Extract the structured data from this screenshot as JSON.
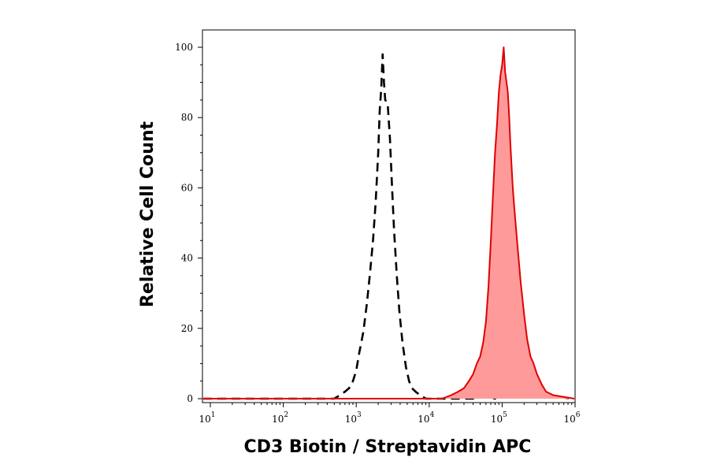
{
  "chart_data": {
    "type": "area",
    "title": "",
    "xlabel": "CD3 Biotin / Streptavidin APC",
    "ylabel": "Relative Cell Count",
    "x_scale": "log10",
    "xlim": [
      10,
      1000000
    ],
    "ylim": [
      0,
      100
    ],
    "grid": false,
    "legend": "none",
    "x_ticks": [
      {
        "base": "10",
        "exp": "1",
        "value": 10
      },
      {
        "base": "10",
        "exp": "2",
        "value": 100
      },
      {
        "base": "10",
        "exp": "3",
        "value": 1000
      },
      {
        "base": "10",
        "exp": "4",
        "value": 10000
      },
      {
        "base": "10",
        "exp": "5",
        "value": 100000
      },
      {
        "base": "10",
        "exp": "6",
        "value": 1000000
      }
    ],
    "y_ticks": [
      "0",
      "20",
      "40",
      "60",
      "80",
      "100"
    ],
    "series": [
      {
        "style": "dashed",
        "color": "#000000",
        "fill": false,
        "x": [
          6,
          500,
          600,
          700,
          800,
          900,
          1000,
          1100,
          1250,
          1400,
          1550,
          1700,
          1850,
          2000,
          2100,
          2200,
          2300,
          2400,
          2500,
          2700,
          2900,
          3100,
          3300,
          3600,
          3900,
          4300,
          4800,
          5300,
          5800,
          6500,
          7500,
          9000,
          12000,
          20000,
          40000,
          60000,
          80000,
          100000,
          1000000
        ],
        "y": [
          0,
          0,
          1,
          2,
          3,
          5,
          8,
          13,
          19,
          27,
          36,
          45,
          56,
          70,
          82,
          88,
          98,
          90,
          85,
          84,
          74,
          60,
          48,
          35,
          25,
          16,
          9,
          5,
          3,
          2,
          1,
          0,
          0,
          0,
          0,
          1,
          0,
          2,
          0
        ]
      },
      {
        "style": "solid",
        "color": "#e00000",
        "fill": true,
        "fill_color": "#ff9a9a",
        "x": [
          6,
          15000,
          20000,
          25000,
          30000,
          35000,
          40000,
          45000,
          50000,
          55000,
          60000,
          65000,
          70000,
          75000,
          80000,
          85000,
          90000,
          95000,
          100000,
          105000,
          110000,
          115000,
          120000,
          125000,
          130000,
          140000,
          150000,
          165000,
          180000,
          200000,
          220000,
          245000,
          270000,
          300000,
          350000,
          400000,
          500000,
          1000000
        ],
        "y": [
          0,
          0,
          1,
          2,
          3,
          5,
          7,
          10,
          12,
          16,
          22,
          32,
          45,
          58,
          70,
          78,
          87,
          92,
          95,
          100,
          93,
          90,
          87,
          80,
          72,
          60,
          52,
          42,
          33,
          24,
          17,
          12,
          10,
          7,
          4,
          2,
          1,
          0
        ]
      }
    ]
  }
}
